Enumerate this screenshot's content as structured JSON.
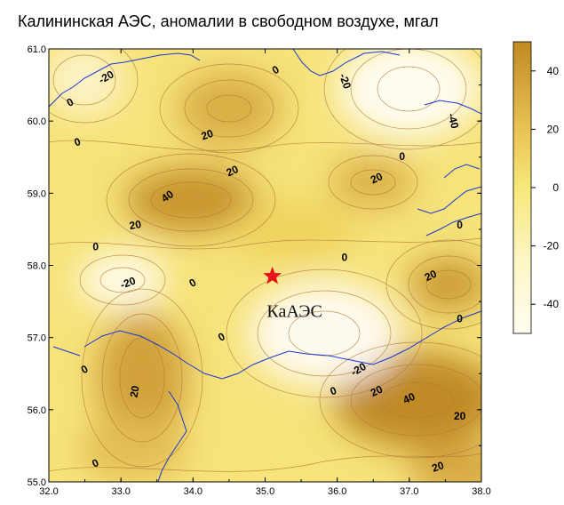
{
  "title": "Калининская  АЭС,  аномалии в свободном воздухе, мгал",
  "station": {
    "label": "КаАЭС",
    "lon": 35.1,
    "lat": 57.85,
    "color": "#e8121b"
  },
  "axes": {
    "lon_range": [
      32.0,
      38.0
    ],
    "lat_range": [
      55.0,
      61.0
    ],
    "x_ticks": [
      "32.0",
      "33.0",
      "34.0",
      "35.0",
      "36.0",
      "37.0",
      "38.0"
    ],
    "y_ticks": [
      "55.0",
      "56.0",
      "57.0",
      "58.0",
      "59.0",
      "60.0",
      "61.0"
    ]
  },
  "colorbar": {
    "ticks": [
      "40",
      "20",
      "0",
      "-20",
      "-40"
    ],
    "range": [
      -50,
      50
    ],
    "colors": {
      "high": "#c08a25",
      "mid": "#f7e87a",
      "low": "#fffdf2"
    }
  },
  "contour_labels": [
    {
      "text": "-20",
      "lon": 32.8,
      "lat": 60.6,
      "rot": -30
    },
    {
      "text": "0",
      "lon": 32.3,
      "lat": 60.25,
      "rot": -30
    },
    {
      "text": "0",
      "lon": 32.4,
      "lat": 59.7,
      "rot": -20
    },
    {
      "text": "0",
      "lon": 35.15,
      "lat": 60.7,
      "rot": -30
    },
    {
      "text": "-20",
      "lon": 36.1,
      "lat": 60.55,
      "rot": 70
    },
    {
      "text": "-40",
      "lon": 37.6,
      "lat": 60.0,
      "rot": 75
    },
    {
      "text": "20",
      "lon": 34.2,
      "lat": 59.8,
      "rot": -20
    },
    {
      "text": "20",
      "lon": 34.55,
      "lat": 59.3,
      "rot": -25
    },
    {
      "text": "40",
      "lon": 33.65,
      "lat": 58.95,
      "rot": -35
    },
    {
      "text": "20",
      "lon": 33.2,
      "lat": 58.55,
      "rot": -10
    },
    {
      "text": "0",
      "lon": 36.9,
      "lat": 59.5,
      "rot": 0
    },
    {
      "text": "20",
      "lon": 36.55,
      "lat": 59.2,
      "rot": -25
    },
    {
      "text": "0",
      "lon": 37.7,
      "lat": 58.55,
      "rot": 0
    },
    {
      "text": "0",
      "lon": 32.65,
      "lat": 58.25,
      "rot": 0
    },
    {
      "text": "-20",
      "lon": 33.1,
      "lat": 57.75,
      "rot": -20
    },
    {
      "text": "0",
      "lon": 34.0,
      "lat": 57.75,
      "rot": -30
    },
    {
      "text": "0",
      "lon": 36.1,
      "lat": 58.1,
      "rot": 0
    },
    {
      "text": "20",
      "lon": 37.3,
      "lat": 57.85,
      "rot": -25
    },
    {
      "text": "0",
      "lon": 37.7,
      "lat": 57.25,
      "rot": 0
    },
    {
      "text": "0",
      "lon": 34.4,
      "lat": 57.0,
      "rot": -30
    },
    {
      "text": "-20",
      "lon": 36.3,
      "lat": 56.55,
      "rot": -30
    },
    {
      "text": "0",
      "lon": 35.95,
      "lat": 56.25,
      "rot": -20
    },
    {
      "text": "20",
      "lon": 36.55,
      "lat": 56.25,
      "rot": -25
    },
    {
      "text": "40",
      "lon": 37.0,
      "lat": 56.15,
      "rot": -25
    },
    {
      "text": "0",
      "lon": 32.5,
      "lat": 56.55,
      "rot": -30
    },
    {
      "text": "20",
      "lon": 33.2,
      "lat": 56.25,
      "rot": -80
    },
    {
      "text": "20",
      "lon": 37.7,
      "lat": 55.9,
      "rot": 0
    },
    {
      "text": "0",
      "lon": 32.65,
      "lat": 55.25,
      "rot": -25
    },
    {
      "text": "20",
      "lon": 37.4,
      "lat": 55.2,
      "rot": -20
    }
  ]
}
